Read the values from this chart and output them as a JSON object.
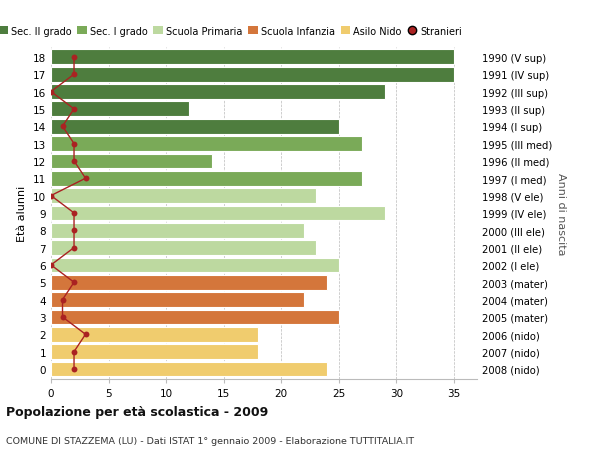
{
  "ages": [
    18,
    17,
    16,
    15,
    14,
    13,
    12,
    11,
    10,
    9,
    8,
    7,
    6,
    5,
    4,
    3,
    2,
    1,
    0
  ],
  "right_labels": [
    "1990 (V sup)",
    "1991 (IV sup)",
    "1992 (III sup)",
    "1993 (II sup)",
    "1994 (I sup)",
    "1995 (III med)",
    "1996 (II med)",
    "1997 (I med)",
    "1998 (V ele)",
    "1999 (IV ele)",
    "2000 (III ele)",
    "2001 (II ele)",
    "2002 (I ele)",
    "2003 (mater)",
    "2004 (mater)",
    "2005 (mater)",
    "2006 (nido)",
    "2007 (nido)",
    "2008 (nido)"
  ],
  "bar_values": [
    35,
    35,
    29,
    12,
    25,
    27,
    14,
    27,
    23,
    29,
    22,
    23,
    25,
    24,
    22,
    25,
    18,
    18,
    24
  ],
  "bar_colors": [
    "#4e7d3e",
    "#4e7d3e",
    "#4e7d3e",
    "#4e7d3e",
    "#4e7d3e",
    "#7aaa58",
    "#7aaa58",
    "#7aaa58",
    "#bdd9a0",
    "#bdd9a0",
    "#bdd9a0",
    "#bdd9a0",
    "#bdd9a0",
    "#d4763b",
    "#d4763b",
    "#d4763b",
    "#f0cc6e",
    "#f0cc6e",
    "#f0cc6e"
  ],
  "stranieri_values": [
    2,
    2,
    0,
    2,
    1,
    2,
    2,
    3,
    0,
    2,
    2,
    2,
    0,
    2,
    1,
    1,
    3,
    2,
    2
  ],
  "stranieri_color": "#aa2222",
  "legend_labels": [
    "Sec. II grado",
    "Sec. I grado",
    "Scuola Primaria",
    "Scuola Infanzia",
    "Asilo Nido",
    "Stranieri"
  ],
  "legend_colors": [
    "#4e7d3e",
    "#7aaa58",
    "#bdd9a0",
    "#d4763b",
    "#f0cc6e",
    "#aa2222"
  ],
  "ylabel_left": "Età alunni",
  "ylabel_right": "Anni di nascita",
  "title_bold": "Popolazione per età scolastica - 2009",
  "subtitle": "COMUNE DI STAZZEMA (LU) - Dati ISTAT 1° gennaio 2009 - Elaborazione TUTTITALIA.IT",
  "xlim": [
    0,
    37
  ],
  "xticks": [
    0,
    5,
    10,
    15,
    20,
    25,
    30,
    35
  ],
  "bg_color": "#ffffff",
  "bar_edge_color": "#ffffff",
  "grid_color": "#bbbbbb"
}
